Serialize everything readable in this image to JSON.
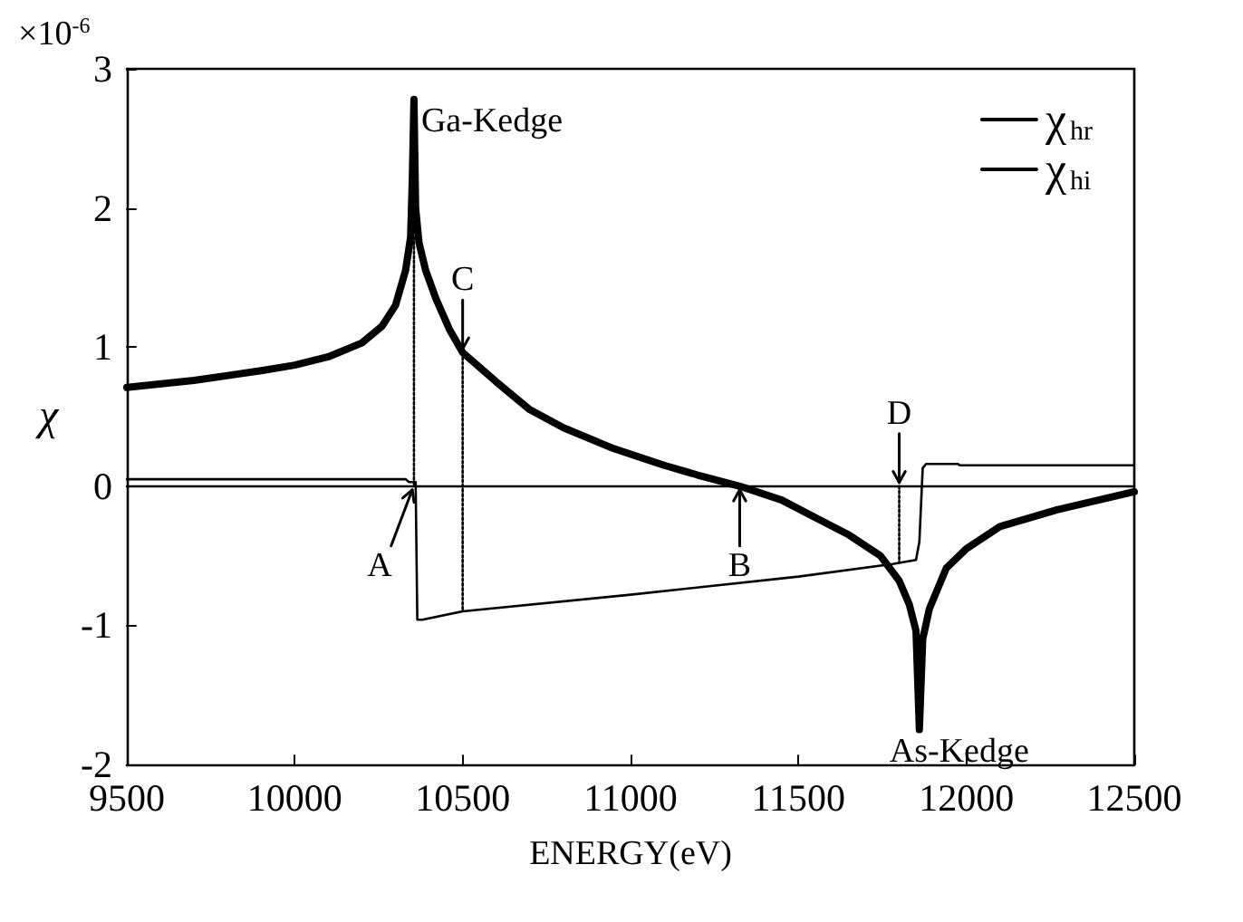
{
  "chart_data": {
    "type": "line",
    "xlabel": "ENERGY(eV)",
    "ylabel": "χ",
    "xlim": [
      9500,
      12500
    ],
    "xticks": [
      9500,
      10000,
      10500,
      11000,
      11500,
      12000,
      12500
    ],
    "ylim": [
      -2,
      3
    ],
    "yticks": [
      -2,
      -1,
      0,
      1,
      2,
      3
    ],
    "grid": false,
    "legend": "top right",
    "marker": "none",
    "line_style": "solid",
    "series": [
      {
        "name": "χ$_{hr}$",
        "color": "#000000",
        "x": [
          9500,
          9700,
          9900,
          10000,
          10100,
          10200,
          10260,
          10300,
          10330,
          10345,
          10350,
          10355,
          10360,
          10370,
          10390,
          10420,
          10460,
          10500,
          10600,
          10700,
          10800,
          10950,
          11100,
          11200,
          11325,
          11450,
          11570,
          11650,
          11744,
          11800,
          11830,
          11850,
          11860,
          11870,
          11890,
          11940,
          12000,
          12100,
          12270,
          12500
        ],
        "values": [
          0.71,
          0.76,
          0.83,
          0.87,
          0.93,
          1.03,
          1.15,
          1.3,
          1.55,
          1.79,
          2.2,
          2.78,
          2.0,
          1.75,
          1.55,
          1.35,
          1.13,
          0.96,
          0.75,
          0.55,
          0.42,
          0.27,
          0.15,
          0.08,
          0,
          -0.1,
          -0.25,
          -0.35,
          -0.5,
          -0.68,
          -0.85,
          -1.04,
          -1.75,
          -1.1,
          -0.88,
          -0.59,
          -0.45,
          -0.29,
          -0.17,
          -0.04
        ]
      },
      {
        "name": "χ$_{hi}$",
        "color": "#000000",
        "x": [
          9500,
          10330,
          10340,
          10360,
          10365,
          10380,
          10500,
          11000,
          11500,
          11780,
          11850,
          11860,
          11870,
          11880,
          11975,
          11980,
          12500
        ],
        "values": [
          0.05,
          0.05,
          0.03,
          0.03,
          -0.96,
          -0.96,
          -0.9,
          -0.78,
          -0.65,
          -0.56,
          -0.53,
          -0.4,
          0.13,
          0.16,
          0.16,
          0.15,
          0.15
        ]
      },
      {
        "color": "#000000",
        "line_style": "dotted",
        "x": [
          10355,
          10355
        ],
        "values": [
          1.79,
          0
        ]
      },
      {
        "color": "#000000",
        "line_style": "dotted",
        "x": [
          10500,
          10500
        ],
        "values": [
          0.96,
          -0.9
        ]
      },
      {
        "color": "#000000",
        "line_style": "dotted",
        "x": [
          11800,
          11800
        ],
        "values": [
          0,
          -0.55
        ]
      }
    ],
    "ref_lines": [
      {
        "axis": "y",
        "value": 0,
        "color": "#000000",
        "line_style": "solid"
      }
    ],
    "annotations": [
      "×10$^{-6}$",
      {
        "text": "Ga-Kedge",
        "x": 10355,
        "y": 2.78
      },
      {
        "text": "As-Kedge",
        "x": 11860,
        "y": -1.75
      },
      {
        "text": "A",
        "x": 10350,
        "y": 0
      },
      {
        "text": "B",
        "x": 11325,
        "y": 0
      },
      {
        "text": "C",
        "x": 10500,
        "y": 0.96
      },
      {
        "text": "D",
        "x": 11800,
        "y": 0
      }
    ]
  }
}
